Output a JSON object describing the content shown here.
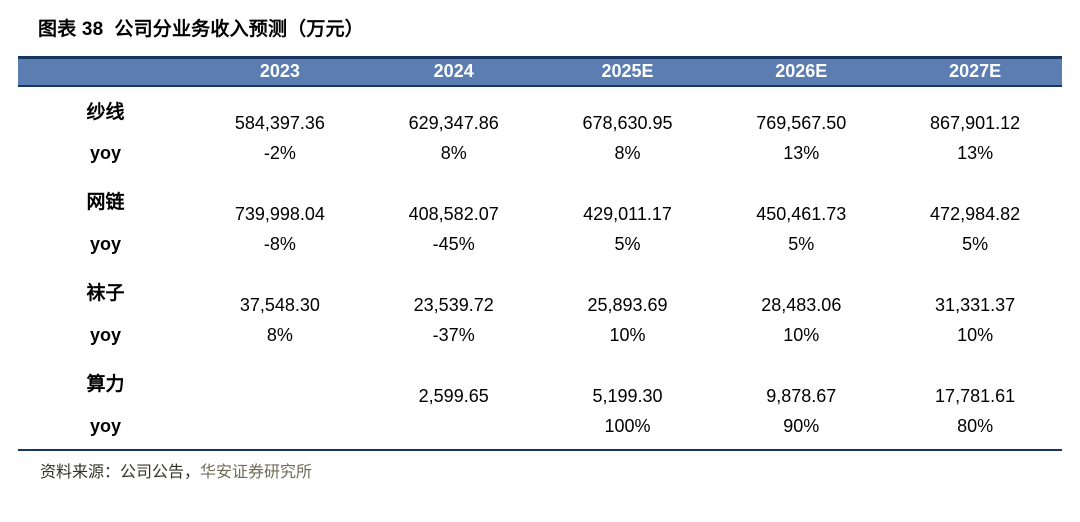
{
  "title": "图表 38  公司分业务收入预测（万元）",
  "table": {
    "header": [
      "",
      "2023",
      "2024",
      "2025E",
      "2026E",
      "2027E"
    ],
    "yoy_label": "yoy",
    "segments": [
      {
        "name": "纱线",
        "values": [
          "584,397.36",
          "629,347.86",
          "678,630.95",
          "769,567.50",
          "867,901.12"
        ],
        "yoy": [
          "-2%",
          "8%",
          "8%",
          "13%",
          "13%"
        ]
      },
      {
        "name": "网链",
        "values": [
          "739,998.04",
          "408,582.07",
          "429,011.17",
          "450,461.73",
          "472,984.82"
        ],
        "yoy": [
          "-8%",
          "-45%",
          "5%",
          "5%",
          "5%"
        ]
      },
      {
        "name": "袜子",
        "values": [
          "37,548.30",
          "23,539.72",
          "25,893.69",
          "28,483.06",
          "31,331.37"
        ],
        "yoy": [
          "8%",
          "-37%",
          "10%",
          "10%",
          "10%"
        ]
      },
      {
        "name": "算力",
        "values": [
          "",
          "2,599.65",
          "5,199.30",
          "9,878.67",
          "17,781.61"
        ],
        "yoy": [
          "",
          "",
          "100%",
          "90%",
          "80%"
        ]
      }
    ]
  },
  "footer": {
    "source_prefix": "资料来源：公司公告，",
    "source_org": "华安证券研究所"
  },
  "colors": {
    "header_bg": "#5B7DB1",
    "header_text": "#FFFFFF",
    "border": "#17375E"
  },
  "chart_data": {
    "type": "table",
    "title": "图表 38 公司分业务收入预测（万元）",
    "unit": "万元",
    "columns": [
      "2023",
      "2024",
      "2025E",
      "2026E",
      "2027E"
    ],
    "rows": [
      {
        "label": "纱线",
        "revenue": [
          584397.36,
          629347.86,
          678630.95,
          769567.5,
          867901.12
        ],
        "yoy_pct": [
          -2,
          8,
          8,
          13,
          13
        ]
      },
      {
        "label": "网链",
        "revenue": [
          739998.04,
          408582.07,
          429011.17,
          450461.73,
          472984.82
        ],
        "yoy_pct": [
          -8,
          -45,
          5,
          5,
          5
        ]
      },
      {
        "label": "袜子",
        "revenue": [
          37548.3,
          23539.72,
          25893.69,
          28483.06,
          31331.37
        ],
        "yoy_pct": [
          8,
          -37,
          10,
          10,
          10
        ]
      },
      {
        "label": "算力",
        "revenue": [
          null,
          2599.65,
          5199.3,
          9878.67,
          17781.61
        ],
        "yoy_pct": [
          null,
          null,
          100,
          90,
          80
        ]
      }
    ]
  }
}
